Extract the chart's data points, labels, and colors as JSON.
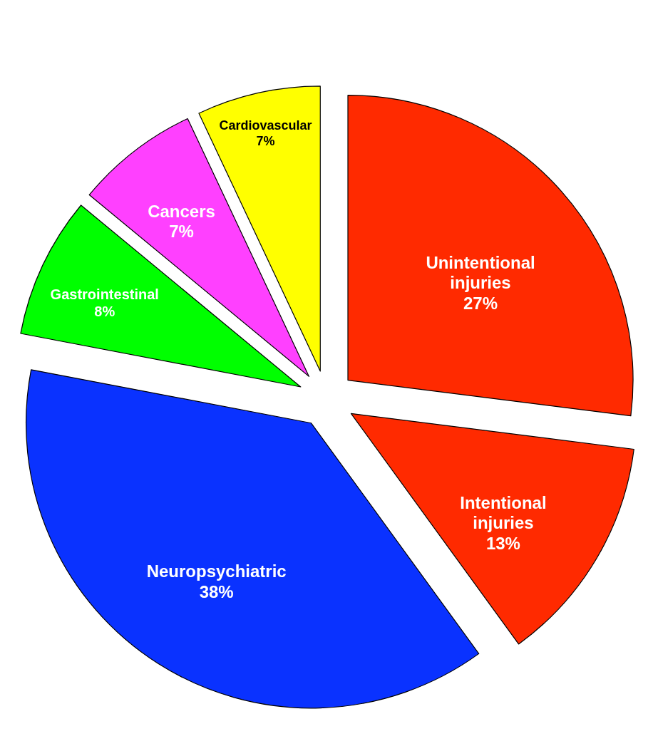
{
  "chart_data": {
    "type": "pie",
    "categories": [
      "Unintentional injuries",
      "Intentional injuries",
      "Neuropsychiatric",
      "Gastrointestinal",
      "Cancers",
      "Cardiovascular"
    ],
    "values": [
      27,
      13,
      38,
      8,
      7,
      7
    ],
    "colors": [
      "#ff2a00",
      "#ff2a00",
      "#0a32ff",
      "#00ff00",
      "#ff40ff",
      "#ffff00"
    ],
    "value_labels": [
      "27%",
      "13%",
      "38%",
      "8%",
      "7%",
      "7%"
    ]
  }
}
